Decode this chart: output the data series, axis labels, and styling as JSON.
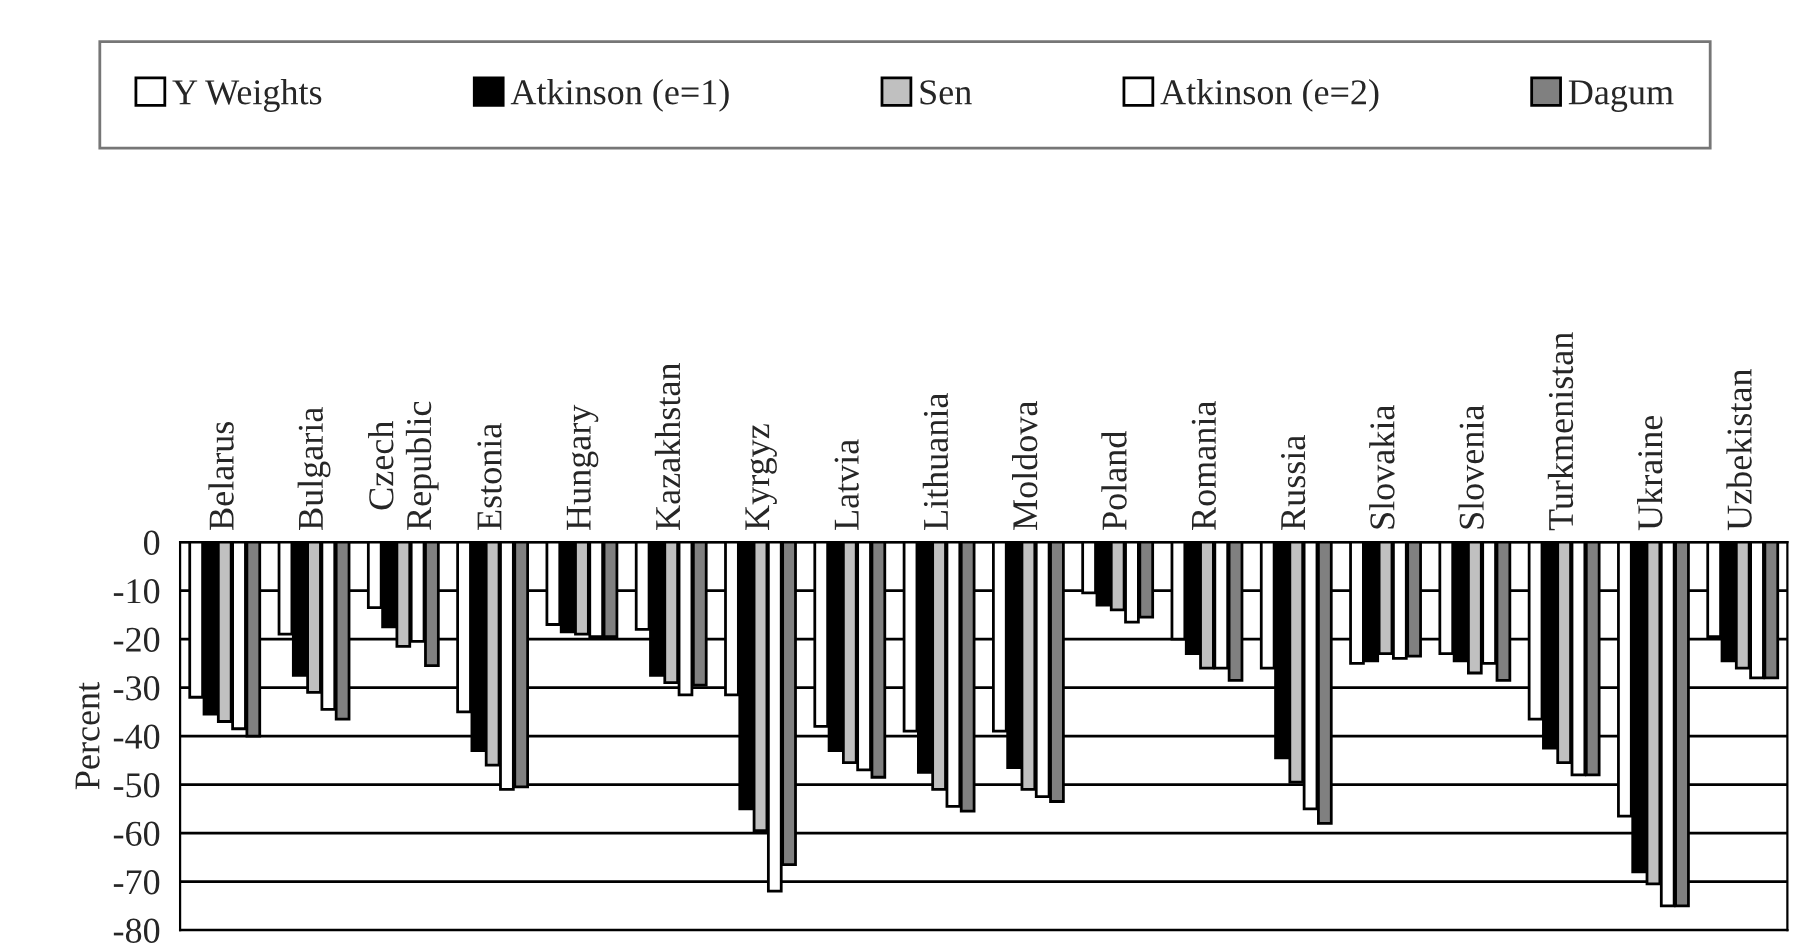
{
  "chart_data": {
    "type": "bar",
    "ylabel": "Percent",
    "categories": [
      "Belarus",
      "Bulgaria",
      "Czech Republic",
      "Estonia",
      "Hungary",
      "Kazakhstan",
      "Kyrgyz",
      "Latvia",
      "Lithuania",
      "Moldova",
      "Poland",
      "Romania",
      "Russia",
      "Slovakia",
      "Slovenia",
      "Turkmenistan",
      "Ukraine",
      "Uzbekistan"
    ],
    "series": [
      {
        "name": "Y Weights",
        "color": "#ffffff",
        "values": [
          -32,
          -19,
          -13.5,
          -35,
          -17,
          -18,
          -31.5,
          -38,
          -39,
          -39,
          -10.5,
          -20,
          -26,
          -25,
          -23,
          -36.5,
          -56.5,
          -19.5
        ]
      },
      {
        "name": "Atkinson (e=1)",
        "color": "#000000",
        "values": [
          -35.5,
          -27.5,
          -17.5,
          -43,
          -18.5,
          -27.5,
          -55,
          -43,
          -47.5,
          -46.5,
          -13,
          -23,
          -44.5,
          -24.5,
          -24.5,
          -42.5,
          -68,
          -24.5
        ]
      },
      {
        "name": "Sen",
        "color": "#c0c0c0",
        "values": [
          -37,
          -31,
          -21.5,
          -46,
          -19,
          -29,
          -59.5,
          -45.5,
          -51,
          -51,
          -14,
          -26,
          -49.5,
          -23,
          -27,
          -45.5,
          -70.5,
          -26
        ]
      },
      {
        "name": "Atkinson (e=2)",
        "color": "#ffffff",
        "values": [
          -38.5,
          -34.5,
          -20.5,
          -51,
          -19.5,
          -31.5,
          -72,
          -47,
          -54.5,
          -52.5,
          -16.5,
          -26,
          -55,
          -24,
          -25,
          -48,
          -75,
          -28
        ]
      },
      {
        "name": "Dagum",
        "color": "#808080",
        "values": [
          -40,
          -36.5,
          -25.5,
          -50.5,
          -19.5,
          -29.5,
          -66.5,
          -48.5,
          -55.5,
          -53.5,
          -15.5,
          -28.5,
          -58,
          -23.5,
          -28.5,
          -48,
          -75,
          -28
        ]
      }
    ],
    "ylim": [
      -80,
      0
    ],
    "yticks": [
      -80,
      -70,
      -60,
      -50,
      -40,
      -30,
      -20,
      -10,
      0
    ],
    "grid": "y",
    "legend": "top"
  }
}
